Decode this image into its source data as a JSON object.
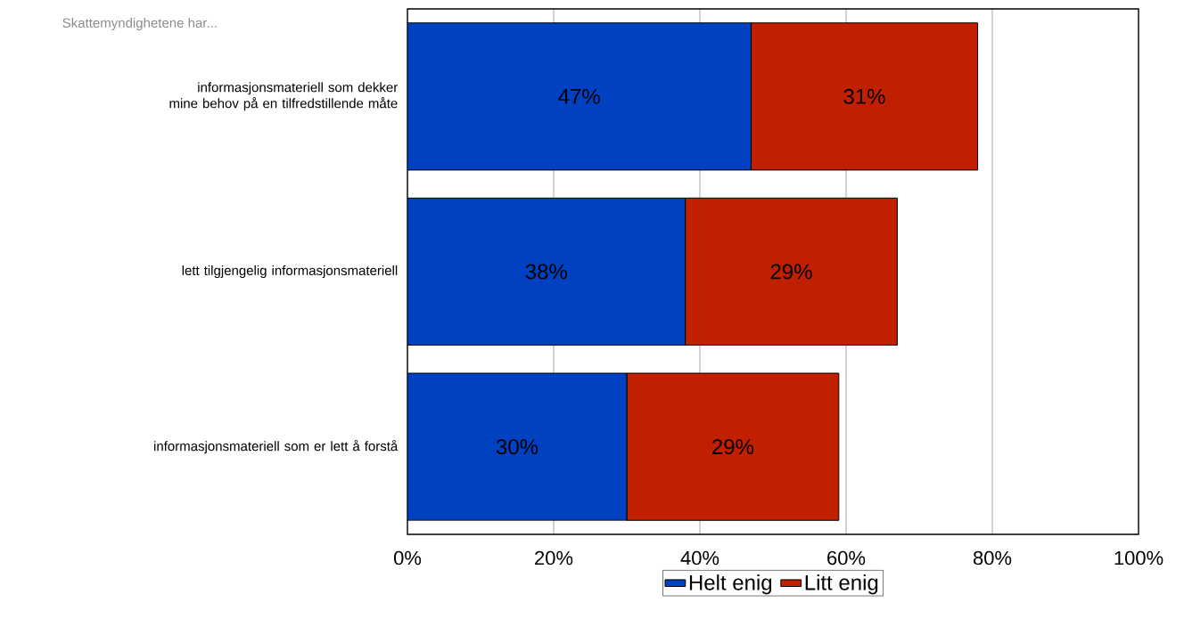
{
  "chart_data": {
    "type": "bar",
    "orientation": "horizontal",
    "stacked": true,
    "title": "Skattemyndighetene har...",
    "categories": [
      "informasjonsmateriell som dekker mine behov på en tilfredstillende måte",
      "lett tilgjengelig informasjonsmateriell",
      "informasjonsmateriell som er lett å forstå"
    ],
    "series": [
      {
        "name": "Helt enig",
        "color": "#0041c2",
        "values": [
          47,
          38,
          30
        ],
        "value_labels": [
          "47%",
          "38%",
          "30%"
        ]
      },
      {
        "name": "Litt enig",
        "color": "#c02000",
        "values": [
          31,
          29,
          29
        ],
        "value_labels": [
          "31%",
          "29%",
          "29%"
        ]
      }
    ],
    "xlim": [
      0,
      100
    ],
    "xticks": [
      {
        "value": 0,
        "label": "0%"
      },
      {
        "value": 20,
        "label": "20%"
      },
      {
        "value": 40,
        "label": "40%"
      },
      {
        "value": 60,
        "label": "60%"
      },
      {
        "value": 80,
        "label": "80%"
      },
      {
        "value": 100,
        "label": "100%"
      }
    ],
    "grid": "x",
    "legend": "bottom"
  }
}
